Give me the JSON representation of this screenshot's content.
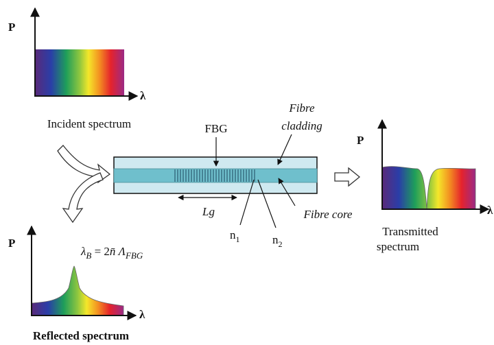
{
  "incident": {
    "axis_y": "P",
    "axis_x": "λ",
    "label": "Incident spectrum"
  },
  "fibre": {
    "fbg": "FBG",
    "cladding_lines": [
      "Fibre",
      "cladding"
    ],
    "core": "Fibre core",
    "length": "Lg",
    "n1": {
      "base": "n",
      "sub": "1"
    },
    "n2": {
      "base": "n",
      "sub": "2"
    }
  },
  "transmitted": {
    "axis_y": "P",
    "axis_x": "λ",
    "label_lines": [
      "Transmitted",
      "spectrum"
    ]
  },
  "reflected": {
    "axis_y": "P",
    "axis_x": "λ",
    "label": "Reflected spectrum",
    "formula": {
      "lhs": "λ",
      "lhs_sub": "B",
      "eq": " = 2",
      "n": "n̄",
      "lam": " Λ",
      "lam_sub": "FBG"
    }
  }
}
